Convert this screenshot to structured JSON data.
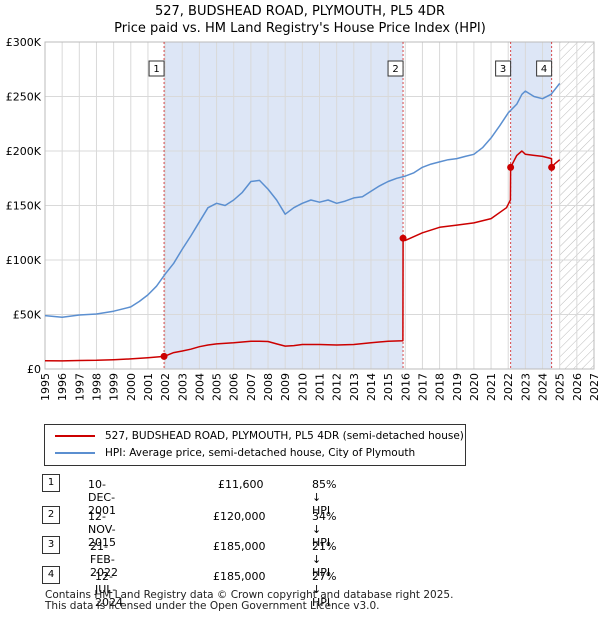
{
  "header": {
    "title": "527, BUDSHEAD ROAD, PLYMOUTH, PL5 4DR",
    "subtitle": "Price paid vs. HM Land Registry's House Price Index (HPI)"
  },
  "colors": {
    "red": "#cc0000",
    "blue": "#5b8fd0",
    "shade": "#dde6f6",
    "grid": "#d9d9d9"
  },
  "chart_data": {
    "type": "line",
    "title": "527, BUDSHEAD ROAD, PLYMOUTH, PL5 4DR",
    "xlim": [
      1995,
      2027
    ],
    "ylim": [
      0,
      300000
    ],
    "y_ticks": [
      0,
      50000,
      100000,
      150000,
      200000,
      250000,
      300000
    ],
    "y_tick_labels": [
      "£0",
      "£50K",
      "£100K",
      "£150K",
      "£200K",
      "£250K",
      "£300K"
    ],
    "x_ticks": [
      "1995",
      "1996",
      "1997",
      "1998",
      "1999",
      "2000",
      "2001",
      "2002",
      "2003",
      "2004",
      "2005",
      "2006",
      "2007",
      "2008",
      "2009",
      "2010",
      "2011",
      "2012",
      "2013",
      "2014",
      "2015",
      "2016",
      "2017",
      "2018",
      "2019",
      "2020",
      "2021",
      "2022",
      "2023",
      "2024",
      "2025",
      "2026",
      "2027"
    ],
    "forecast_from": 2025.0,
    "sale_markers": [
      {
        "label": "1",
        "x": 2001.94,
        "y": 11600
      },
      {
        "label": "2",
        "x": 2015.87,
        "y": 120000
      },
      {
        "label": "3",
        "x": 2022.14,
        "y": 185000
      },
      {
        "label": "4",
        "x": 2024.53,
        "y": 185000
      }
    ],
    "shaded_ranges": [
      [
        2001.94,
        2015.87
      ],
      [
        2022.14,
        2024.53
      ]
    ],
    "series": [
      {
        "name": "527, BUDSHEAD ROAD, PLYMOUTH, PL5 4DR (semi-detached house)",
        "color": "#cc0000",
        "x": [
          1995,
          1996,
          1997,
          1998,
          1999,
          2000,
          2001,
          2001.94,
          2002.5,
          2003,
          2003.5,
          2004,
          2004.5,
          2005,
          2006,
          2007,
          2007.5,
          2008,
          2008.5,
          2009,
          2009.5,
          2010,
          2011,
          2012,
          2013,
          2014,
          2015,
          2015.86,
          2015.87,
          2016,
          2017,
          2018,
          2019,
          2020,
          2021,
          2021.9,
          2022.13,
          2022.14,
          2022.5,
          2022.8,
          2023,
          2023.5,
          2024,
          2024.52,
          2024.53,
          2024.7,
          2025
        ],
        "y": [
          7600,
          7400,
          7800,
          8000,
          8500,
          9300,
          10300,
          11600,
          15000,
          16500,
          18200,
          20500,
          22000,
          23000,
          24000,
          25500,
          25500,
          25200,
          23000,
          21000,
          21500,
          22500,
          22500,
          22000,
          22500,
          24000,
          25500,
          26000,
          120000,
          118000,
          125000,
          130000,
          132000,
          134000,
          138000,
          148000,
          155000,
          185000,
          196000,
          200000,
          197000,
          196000,
          195000,
          193000,
          185000,
          188000,
          192000
        ]
      },
      {
        "name": "HPI: Average price, semi-detached house, City of Plymouth",
        "color": "#5b8fd0",
        "x": [
          1995,
          1996,
          1997,
          1998,
          1999,
          2000,
          2000.5,
          2001,
          2001.5,
          2002,
          2002.5,
          2003,
          2003.5,
          2004,
          2004.5,
          2005,
          2005.5,
          2006,
          2006.5,
          2007,
          2007.5,
          2008,
          2008.5,
          2009,
          2009.5,
          2010,
          2010.5,
          2011,
          2011.5,
          2012,
          2012.5,
          2013,
          2013.5,
          2014,
          2014.5,
          2015,
          2015.5,
          2016,
          2016.5,
          2017,
          2017.5,
          2018,
          2018.5,
          2019,
          2019.5,
          2020,
          2020.5,
          2021,
          2021.5,
          2022,
          2022.5,
          2022.8,
          2023,
          2023.5,
          2024,
          2024.5,
          2025
        ],
        "y": [
          49000,
          47500,
          49500,
          50500,
          53000,
          57000,
          62000,
          68000,
          76000,
          87000,
          97000,
          110000,
          122000,
          135000,
          148000,
          152000,
          150000,
          155000,
          162000,
          172000,
          173000,
          165000,
          155000,
          142000,
          148000,
          152000,
          155000,
          153000,
          155000,
          152000,
          154000,
          157000,
          158000,
          163000,
          168000,
          172000,
          175000,
          177000,
          180000,
          185000,
          188000,
          190000,
          192000,
          193000,
          195000,
          197000,
          203000,
          212000,
          223000,
          235000,
          243000,
          252000,
          255000,
          250000,
          248000,
          252000,
          262000
        ]
      }
    ]
  },
  "legend": {
    "red_label": "527, BUDSHEAD ROAD, PLYMOUTH, PL5 4DR (semi-detached house)",
    "blue_label": "HPI: Average price, semi-detached house, City of Plymouth"
  },
  "sales": [
    {
      "num": "1",
      "date": "10-DEC-2001",
      "price": "£11,600",
      "hpi": "85% ↓ HPI"
    },
    {
      "num": "2",
      "date": "12-NOV-2015",
      "price": "£120,000",
      "hpi": "34% ↓ HPI"
    },
    {
      "num": "3",
      "date": "21-FEB-2022",
      "price": "£185,000",
      "hpi": "21% ↓ HPI"
    },
    {
      "num": "4",
      "date": "12-JUL-2024",
      "price": "£185,000",
      "hpi": "27% ↓ HPI"
    }
  ],
  "footer": {
    "line1": "Contains HM Land Registry data © Crown copyright and database right 2025.",
    "line2": "This data is licensed under the Open Government Licence v3.0."
  }
}
